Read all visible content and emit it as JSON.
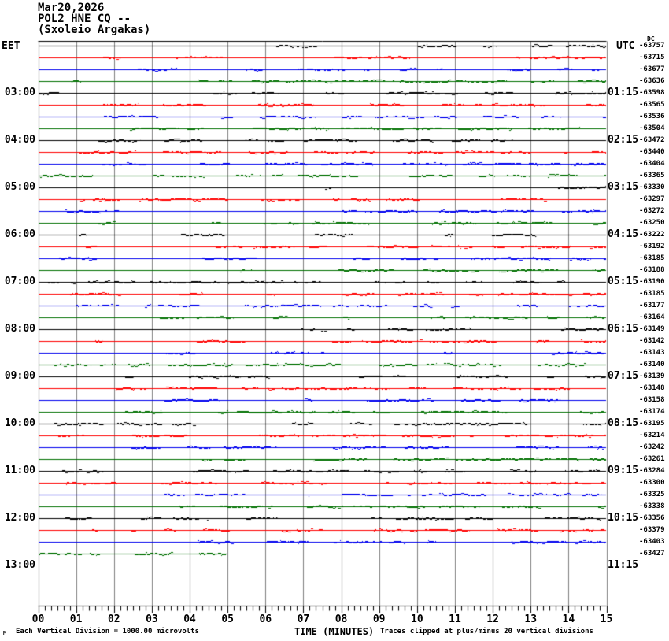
{
  "title": {
    "date": "Mar20,2026",
    "station": "POL2 HNE CQ --",
    "location": "(Sxoleio Argakas)"
  },
  "axis_headers": {
    "left": "EET",
    "right": "UTC",
    "dc": "DC"
  },
  "x_axis": {
    "title": "TIME (MINUTES)",
    "tick_labels": [
      "00",
      "01",
      "02",
      "03",
      "04",
      "05",
      "06",
      "07",
      "08",
      "09",
      "10",
      "11",
      "12",
      "13",
      "14",
      "15"
    ]
  },
  "footer": {
    "marker": "M",
    "left_note": "Each Vertical Division = 1000.00 microvolts",
    "right_note": "Traces clipped at plus/minus 20 vertical divisions"
  },
  "colors": {
    "background": "#ffffff",
    "grid": "#808080",
    "frame": "#000000",
    "trace_black": "#000000",
    "trace_red": "#ff0000",
    "trace_blue": "#0000ee",
    "trace_green": "#007000"
  },
  "chart_data": {
    "type": "line",
    "subtype": "helicorder-seismogram",
    "title": "POL2 HNE CQ -- (Sxoleio Argakas) Mar20,2026",
    "xlabel": "TIME (MINUTES)",
    "x_range_minutes": [
      0,
      15
    ],
    "minutes_per_line": 15,
    "grid": "vertical lines each minute",
    "num_traces": 44,
    "trace_color_cycle": [
      "#000000",
      "#ff0000",
      "#0000ee",
      "#007000"
    ],
    "labels_every_n_rows": 4,
    "first_labeled_row": 5,
    "eet_hour_labels": [
      "03:00",
      "04:00",
      "05:00",
      "06:00",
      "07:00",
      "08:00",
      "09:00",
      "10:00",
      "11:00",
      "12:00",
      "13:00"
    ],
    "utc_quarter_labels": [
      "01:15",
      "02:15",
      "03:15",
      "04:15",
      "05:15",
      "06:15",
      "07:15",
      "08:15",
      "09:15",
      "10:15",
      "11:15"
    ],
    "trace_dc_offsets": [
      -63757,
      -63715,
      -63677,
      -63636,
      -63598,
      -63565,
      -63536,
      -63504,
      -63472,
      -63440,
      -63404,
      -63365,
      -63330,
      -63297,
      -63272,
      -63250,
      -63222,
      -63192,
      -63185,
      -63188,
      -63190,
      -63185,
      -63177,
      -63164,
      -63149,
      -63142,
      -63143,
      -63140,
      -63139,
      -63148,
      -63158,
      -63174,
      -63195,
      -63214,
      -63242,
      -63261,
      -63284,
      -63300,
      -63325,
      -63338,
      -63356,
      -63379,
      -63403,
      -63427
    ],
    "last_trace_end_minute": 5
  }
}
